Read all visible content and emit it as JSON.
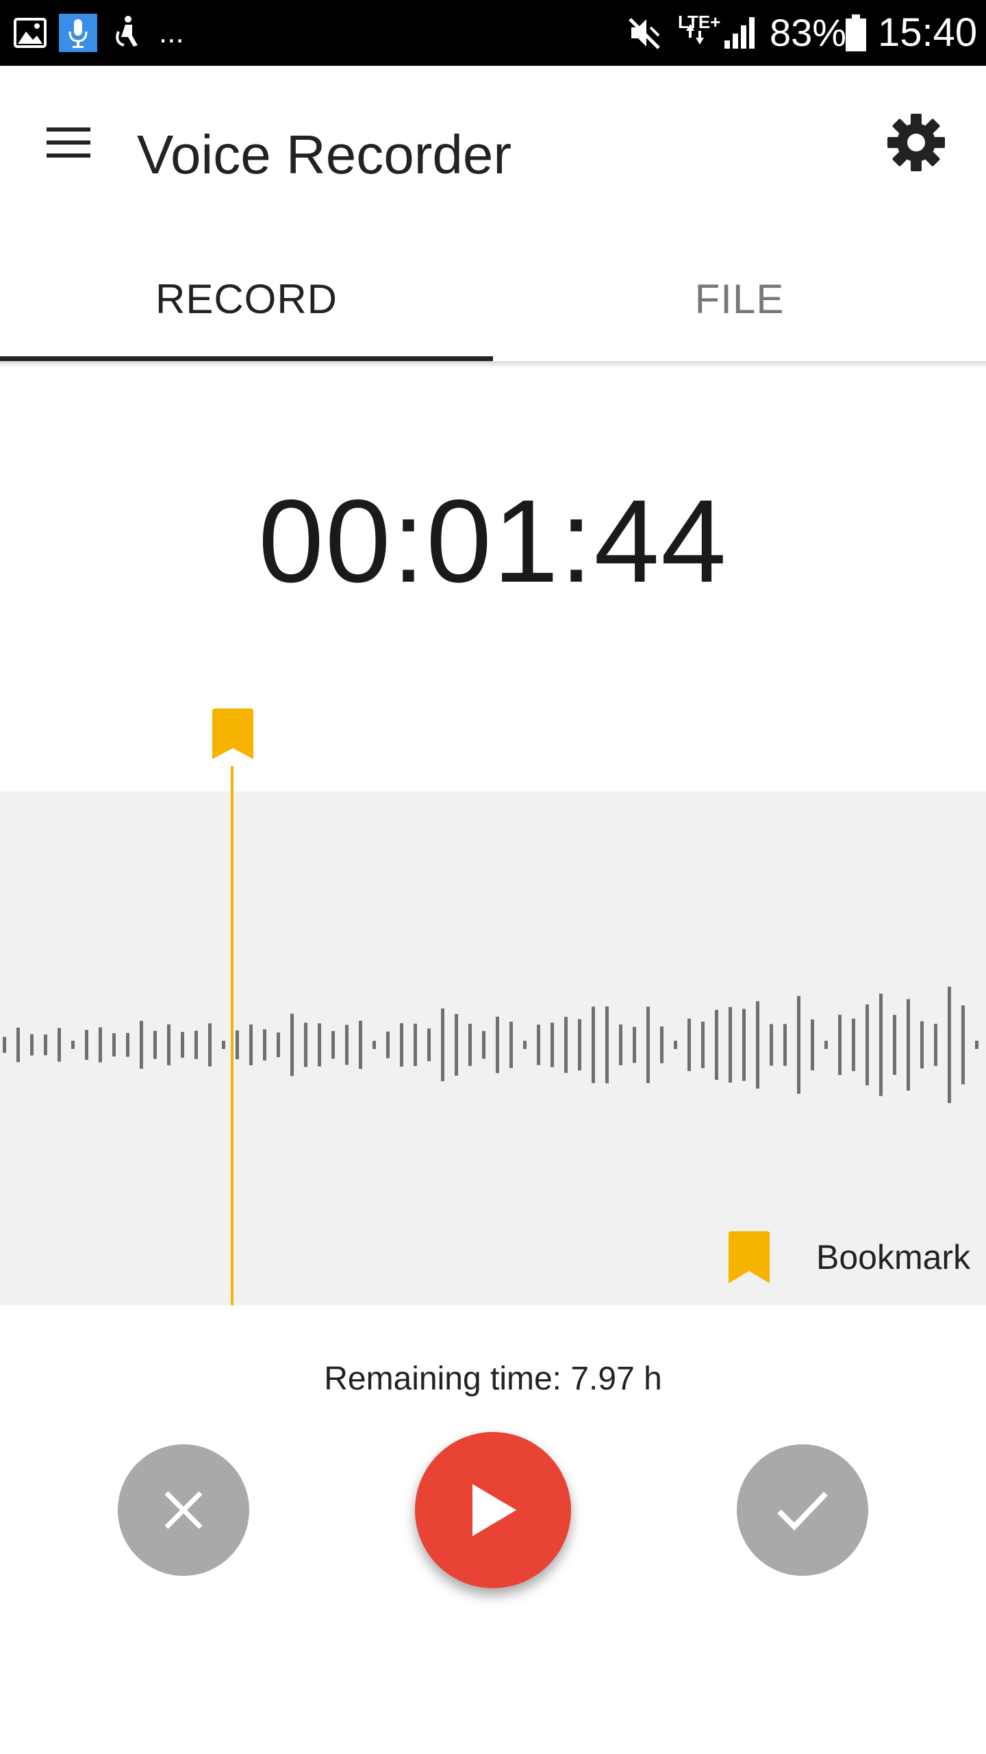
{
  "status_bar": {
    "left_icons": [
      "gallery-icon",
      "voice-recorder-notification-icon",
      "accessibility-icon"
    ],
    "overflow": "...",
    "network": "LTE+",
    "battery": "83%",
    "time": "15:40"
  },
  "app_bar": {
    "title": "Voice Recorder"
  },
  "tabs": [
    {
      "label": "RECORD",
      "selected": true
    },
    {
      "label": "FILE",
      "selected": false
    }
  ],
  "recorder": {
    "elapsed": "00:01:44",
    "bookmark_label": "Bookmark",
    "remaining": "Remaining time: 7.97 h"
  },
  "colors": {
    "accent_record": "#e84335",
    "bookmark": "#f6b300",
    "disabled_button": "#a9a9a9",
    "waveform": "#6f6f6f"
  }
}
